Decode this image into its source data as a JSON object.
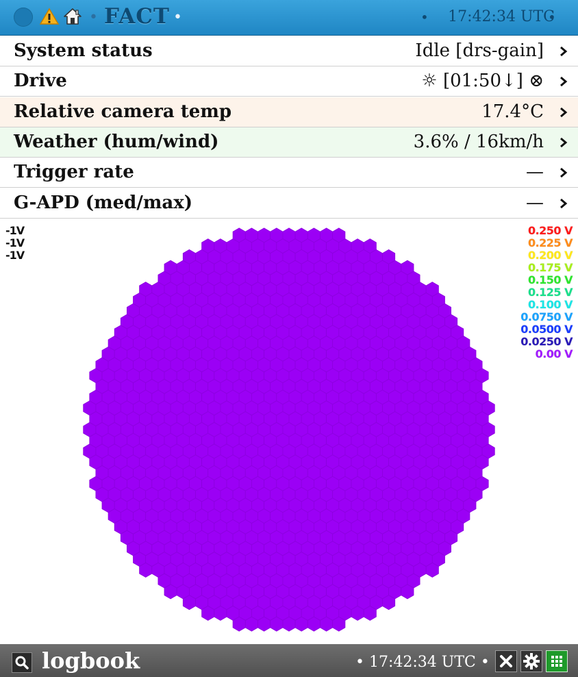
{
  "header": {
    "title": "FACT",
    "time": "17:42:34 UTC",
    "icons": [
      "status-dot-icon",
      "warning-icon",
      "home-icon"
    ]
  },
  "rows": [
    {
      "label": "System status",
      "value": "Idle [drs-gain]",
      "bg": "#ffffff"
    },
    {
      "label": "Drive",
      "value": "☼ [01:50↓] ⊗",
      "bg": "#ffffff"
    },
    {
      "label": "Relative camera temp",
      "value": "17.4°C",
      "bg": "#fdf3ea"
    },
    {
      "label": "Weather (hum/wind)",
      "value": "3.6% / 16km/h",
      "bg": "#eefaee"
    },
    {
      "label": "Trigger rate",
      "value": "—",
      "bg": "#ffffff"
    },
    {
      "label": "G-APD (med/max)",
      "value": "—",
      "bg": "#ffffff"
    }
  ],
  "camera": {
    "pixel_color": "#9b00f5",
    "left_scale": [
      "-1V",
      "-1V",
      "-1V"
    ],
    "color_scale": [
      {
        "label": "0.250 V",
        "color": "#ff1a1a"
      },
      {
        "label": "0.225 V",
        "color": "#ff8c1a"
      },
      {
        "label": "0.200 V",
        "color": "#ffe81a"
      },
      {
        "label": "0.175 V",
        "color": "#a8f01a"
      },
      {
        "label": "0.150 V",
        "color": "#2ee62e"
      },
      {
        "label": "0.125 V",
        "color": "#1ae08c"
      },
      {
        "label": "0.100 V",
        "color": "#1ae6e6"
      },
      {
        "label": "0.0750 V",
        "color": "#1aa3ff"
      },
      {
        "label": "0.0500 V",
        "color": "#1a3dff"
      },
      {
        "label": "0.0250 V",
        "color": "#2a1ab8"
      },
      {
        "label": "0.00 V",
        "color": "#a21aff"
      }
    ]
  },
  "footer": {
    "title": "logbook",
    "time": "17:42:34 UTC"
  }
}
